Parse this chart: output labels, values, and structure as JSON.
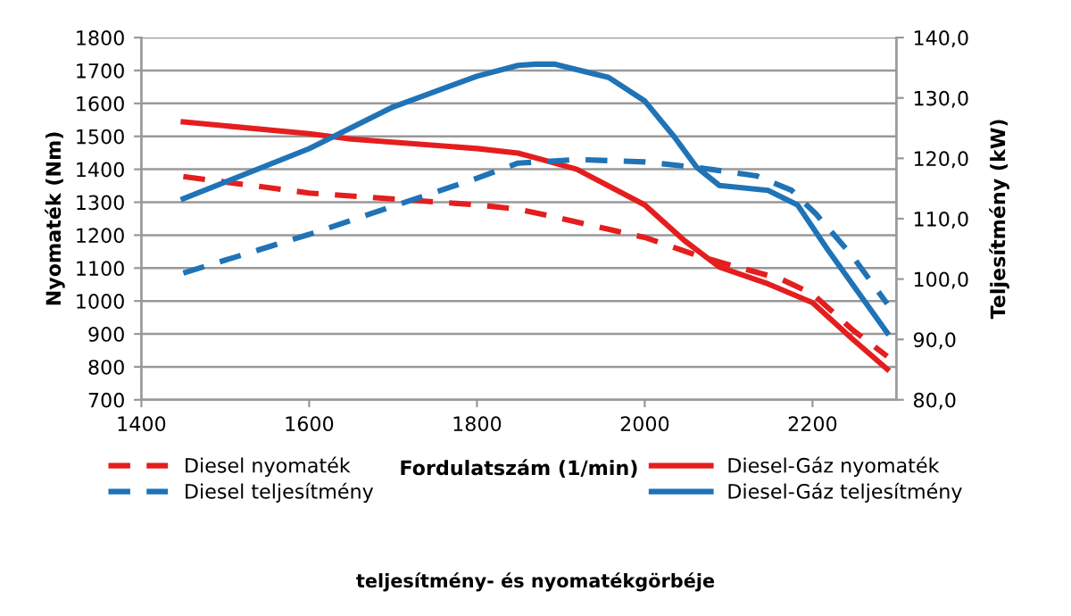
{
  "chart_data": {
    "type": "line",
    "title": "teljesítmény- és nyomatékgörbéje",
    "xlabel": "Fordulatszám (1/min)",
    "ylabel": "Nyomaték (Nm)",
    "y2label": "Teljesítmény (kW)",
    "xlim": [
      1400,
      2300
    ],
    "xticks": [
      1400,
      1600,
      1800,
      2000,
      2200
    ],
    "ylim": [
      700,
      1800
    ],
    "yticks": [
      700,
      800,
      900,
      1000,
      1100,
      1200,
      1300,
      1400,
      1500,
      1600,
      1700,
      1800
    ],
    "y2lim": [
      80,
      140
    ],
    "y2ticks": [
      {
        "value": 80,
        "label": "80,0"
      },
      {
        "value": 90,
        "label": "90,0"
      },
      {
        "value": 100,
        "label": "100,0"
      },
      {
        "value": 110,
        "label": "110,0"
      },
      {
        "value": 120,
        "label": "120,0"
      },
      {
        "value": 130,
        "label": "130,0"
      },
      {
        "value": 140,
        "label": "140,0"
      }
    ],
    "grid": "y",
    "legend": "bottom",
    "marker": "none",
    "series": [
      {
        "name": "Diesel nyomaték",
        "color": "#e41e1e",
        "line_style": "dashed",
        "x": [
          1450,
          1600,
          1800,
          1849,
          1891,
          2000,
          2062,
          2098,
          2162,
          2200,
          2247,
          2289
        ],
        "values": [
          1378,
          1328,
          1292,
          1279,
          1256,
          1193,
          1139,
          1112,
          1067,
          1022,
          914,
          832
        ]
      },
      {
        "name": "Diesel teljesítmény",
        "color": "#1f73b7",
        "line_style": "dashed",
        "axis": "y2",
        "x": [
          1450,
          1600,
          1800,
          1849,
          1919,
          2000,
          2062,
          2133,
          2175,
          2204,
          2247,
          2289
        ],
        "values": [
          101.0,
          107.4,
          116.7,
          119.2,
          119.8,
          119.4,
          118.5,
          117.1,
          114.7,
          110.8,
          103.9,
          95.9
        ]
      },
      {
        "name": "Diesel-Gáz nyomaték",
        "color": "#e41e1e",
        "line_style": "solid",
        "x": [
          1450,
          1600,
          1650,
          1800,
          1849,
          1881,
          1919,
          2000,
          2047,
          2089,
          2147,
          2200,
          2247,
          2289
        ],
        "values": [
          1544,
          1508,
          1492,
          1463,
          1449,
          1427,
          1400,
          1292,
          1184,
          1103,
          1052,
          995,
          886,
          793
        ]
      },
      {
        "name": "Diesel-Gáz teljesítmény",
        "color": "#1f73b7",
        "line_style": "solid",
        "axis": "y2",
        "x": [
          1450,
          1600,
          1700,
          1800,
          1849,
          1870,
          1892,
          1957,
          2000,
          2035,
          2062,
          2089,
          2147,
          2182,
          2218,
          2289
        ],
        "values": [
          113.3,
          121.6,
          128.5,
          133.6,
          135.4,
          135.6,
          135.6,
          133.4,
          129.5,
          123.6,
          118.5,
          115.5,
          114.7,
          112.3,
          104.9,
          91.1
        ]
      }
    ]
  }
}
